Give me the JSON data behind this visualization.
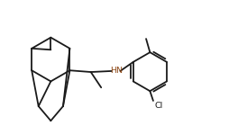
{
  "background_color": "#ffffff",
  "line_color": "#1a1a1a",
  "hn_color": "#8B4513",
  "figsize": [
    2.74,
    1.5
  ],
  "dpi": 100,
  "lw": 1.3
}
